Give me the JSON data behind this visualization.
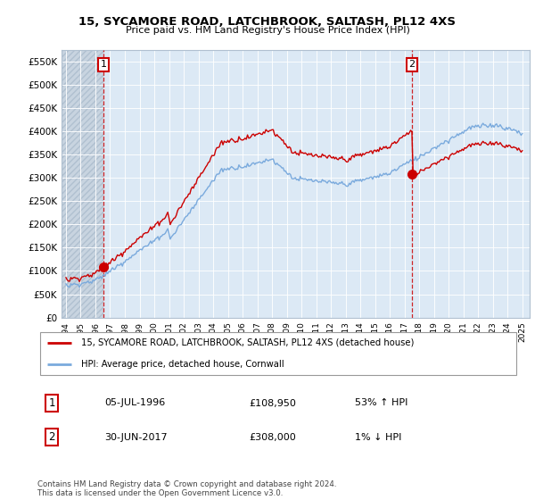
{
  "title": "15, SYCAMORE ROAD, LATCHBROOK, SALTASH, PL12 4XS",
  "subtitle": "Price paid vs. HM Land Registry's House Price Index (HPI)",
  "legend_line1": "15, SYCAMORE ROAD, LATCHBROOK, SALTASH, PL12 4XS (detached house)",
  "legend_line2": "HPI: Average price, detached house, Cornwall",
  "annotation1_label": "1",
  "annotation1_date": "05-JUL-1996",
  "annotation1_price": "£108,950",
  "annotation1_hpi": "53% ↑ HPI",
  "annotation1_year": 1996.54,
  "annotation1_value": 108950,
  "annotation2_label": "2",
  "annotation2_date": "30-JUN-2017",
  "annotation2_price": "£308,000",
  "annotation2_hpi": "1% ↓ HPI",
  "annotation2_year": 2017.5,
  "annotation2_value": 308000,
  "ylim": [
    0,
    575000
  ],
  "xlim_start": 1993.7,
  "xlim_end": 2025.5,
  "yticks": [
    0,
    50000,
    100000,
    150000,
    200000,
    250000,
    300000,
    350000,
    400000,
    450000,
    500000,
    550000
  ],
  "ytick_labels": [
    "£0",
    "£50K",
    "£100K",
    "£150K",
    "£200K",
    "£250K",
    "£300K",
    "£350K",
    "£400K",
    "£450K",
    "£500K",
    "£550K"
  ],
  "xticks": [
    1994,
    1995,
    1996,
    1997,
    1998,
    1999,
    2000,
    2001,
    2002,
    2003,
    2004,
    2005,
    2006,
    2007,
    2008,
    2009,
    2010,
    2011,
    2012,
    2013,
    2014,
    2015,
    2016,
    2017,
    2018,
    2019,
    2020,
    2021,
    2022,
    2023,
    2024,
    2025
  ],
  "footer": "Contains HM Land Registry data © Crown copyright and database right 2024.\nThis data is licensed under the Open Government Licence v3.0.",
  "house_color": "#cc0000",
  "hpi_color": "#7aaadd",
  "grid_color": "#c8daea",
  "plot_bg_color": "#dce9f5",
  "dashed_line_color": "#cc0000",
  "background_color": "#ffffff",
  "hatch_bg_color": "#c8d8e8"
}
